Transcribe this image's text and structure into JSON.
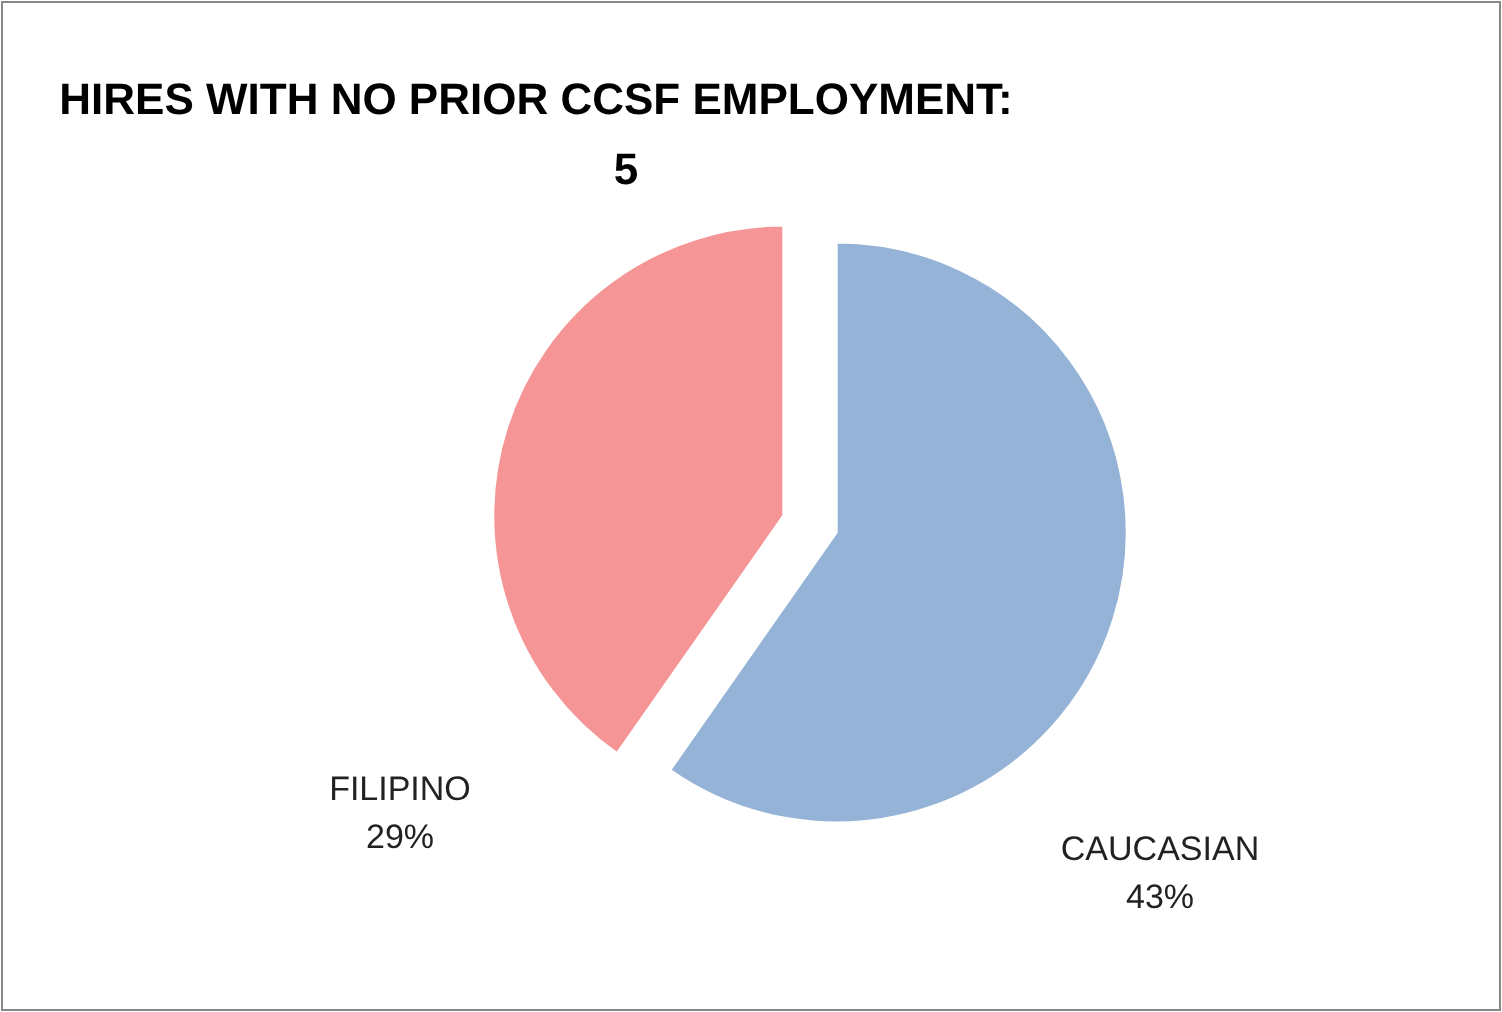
{
  "chart_data": {
    "type": "pie",
    "title": "HIRES WITH NO PRIOR CCSF EMPLOYMENT:\n5",
    "categories": [
      "CAUCASIAN",
      "FILIPINO"
    ],
    "values": [
      43,
      29
    ],
    "value_labels": [
      "43%",
      "29%"
    ],
    "colors": [
      "#95b3d7",
      "#f69595"
    ]
  }
}
